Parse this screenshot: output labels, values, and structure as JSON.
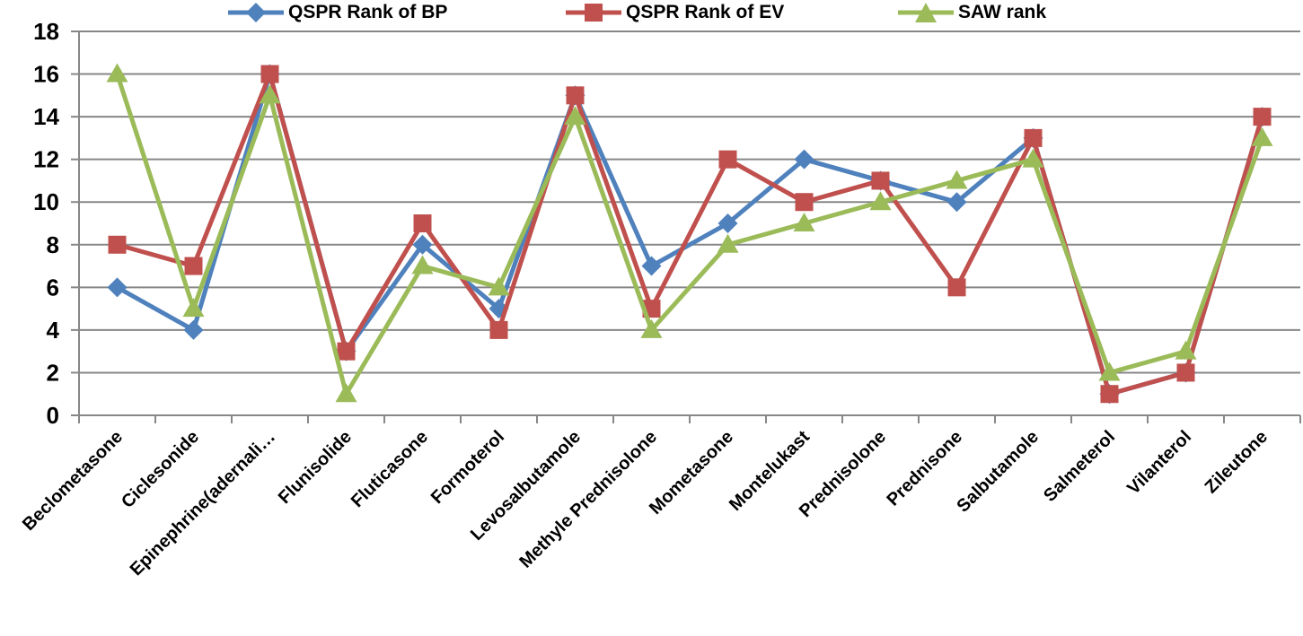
{
  "chart_data": {
    "type": "line",
    "title": "",
    "xlabel": "",
    "ylabel": "",
    "ylim": [
      0,
      18
    ],
    "y_ticks": [
      0,
      2,
      4,
      6,
      8,
      10,
      12,
      14,
      16,
      18
    ],
    "grid": true,
    "legend_position": "top",
    "axis_color": "#878787",
    "categories": [
      "Beclometasone",
      "Ciclesonide",
      "Epinephrine(adernali…",
      "Flunisolide",
      "Fluticasone",
      "Formoterol",
      "Levosalbutamole",
      "Methyle Prednisolone",
      "Mometasone",
      "Montelukast",
      "Prednisolone",
      "Prednisone",
      "Salbutamole",
      "Salmeterol",
      "Vilanterol",
      "Zileutone"
    ],
    "series": [
      {
        "name": "QSPR Rank of BP",
        "color": "#4F81BD",
        "marker": "diamond",
        "values": [
          6,
          4,
          16,
          3,
          8,
          5,
          15,
          7,
          9,
          12,
          11,
          10,
          13,
          1,
          2,
          14
        ]
      },
      {
        "name": "QSPR Rank of EV",
        "color": "#C0504D",
        "marker": "square",
        "values": [
          8,
          7,
          16,
          3,
          9,
          4,
          15,
          5,
          12,
          10,
          11,
          6,
          13,
          1,
          2,
          14
        ]
      },
      {
        "name": "SAW rank",
        "color": "#9BBB59",
        "marker": "triangle",
        "values": [
          16,
          5,
          15,
          1,
          7,
          6,
          14,
          4,
          8,
          9,
          10,
          11,
          12,
          2,
          3,
          13
        ]
      }
    ]
  }
}
